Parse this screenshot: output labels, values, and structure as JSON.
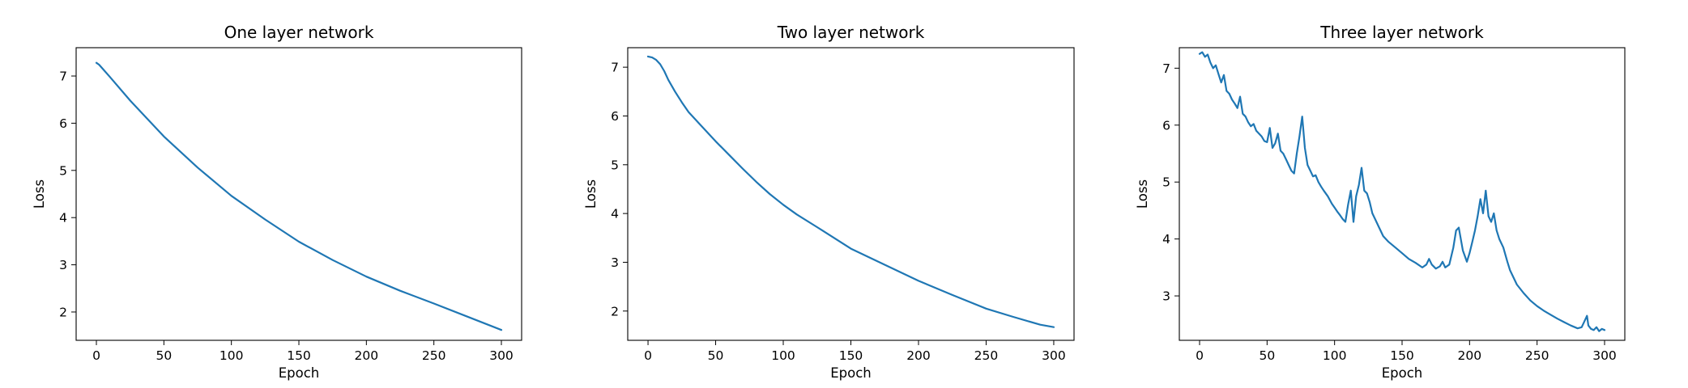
{
  "chart_data": [
    {
      "type": "line",
      "title": "One layer network",
      "xlabel": "Epoch",
      "ylabel": "Loss",
      "xlim": [
        -15,
        315
      ],
      "ylim": [
        1.4,
        7.6
      ],
      "xticks": [
        0,
        50,
        100,
        150,
        200,
        250,
        300
      ],
      "yticks": [
        2,
        3,
        4,
        5,
        6,
        7
      ],
      "grid": false,
      "color": "#1f77b4",
      "series": [
        {
          "x": [
            0,
            2,
            10,
            25,
            50,
            75,
            100,
            125,
            150,
            175,
            200,
            225,
            250,
            275,
            300
          ],
          "y": [
            7.28,
            7.24,
            6.98,
            6.48,
            5.72,
            5.06,
            4.46,
            3.96,
            3.49,
            3.1,
            2.75,
            2.45,
            2.18,
            1.9,
            1.62
          ]
        }
      ]
    },
    {
      "type": "line",
      "title": "Two layer network",
      "xlabel": "Epoch",
      "ylabel": "Loss",
      "xlim": [
        -15,
        315
      ],
      "ylim": [
        1.4,
        7.4
      ],
      "xticks": [
        0,
        50,
        100,
        150,
        200,
        250,
        300
      ],
      "yticks": [
        2,
        3,
        4,
        5,
        6,
        7
      ],
      "grid": false,
      "color": "#1f77b4",
      "series": [
        {
          "x": [
            0,
            3,
            6,
            9,
            12,
            15,
            20,
            25,
            30,
            40,
            50,
            60,
            70,
            80,
            90,
            100,
            110,
            125,
            150,
            175,
            200,
            225,
            250,
            270,
            290,
            300
          ],
          "y": [
            7.22,
            7.2,
            7.15,
            7.06,
            6.92,
            6.74,
            6.5,
            6.28,
            6.08,
            5.78,
            5.48,
            5.2,
            4.92,
            4.65,
            4.4,
            4.18,
            3.98,
            3.72,
            3.28,
            2.95,
            2.62,
            2.33,
            2.05,
            1.88,
            1.72,
            1.67
          ]
        }
      ]
    },
    {
      "type": "line",
      "title": "Three layer network",
      "xlabel": "Epoch",
      "ylabel": "Loss",
      "xlim": [
        -15,
        315
      ],
      "ylim": [
        2.22,
        7.36
      ],
      "xticks": [
        0,
        50,
        100,
        150,
        200,
        250,
        300
      ],
      "yticks": [
        3,
        4,
        5,
        6,
        7
      ],
      "grid": false,
      "color": "#1f77b4",
      "series": [
        {
          "x": [
            0,
            2,
            4,
            6,
            8,
            10,
            12,
            14,
            16,
            18,
            20,
            22,
            24,
            26,
            28,
            30,
            32,
            34,
            36,
            38,
            40,
            42,
            44,
            46,
            48,
            50,
            52,
            54,
            56,
            58,
            60,
            62,
            64,
            66,
            68,
            70,
            72,
            74,
            76,
            78,
            80,
            82,
            84,
            86,
            88,
            90,
            92,
            95,
            98,
            100,
            102,
            104,
            106,
            108,
            110,
            112,
            114,
            116,
            118,
            120,
            122,
            124,
            126,
            128,
            130,
            133,
            136,
            140,
            145,
            150,
            155,
            160,
            165,
            168,
            170,
            172,
            175,
            178,
            180,
            182,
            185,
            188,
            190,
            192,
            195,
            198,
            200,
            202,
            204,
            206,
            208,
            210,
            212,
            214,
            216,
            218,
            220,
            222,
            225,
            228,
            230,
            235,
            240,
            245,
            250,
            255,
            260,
            265,
            270,
            275,
            280,
            283,
            285,
            287,
            288,
            290,
            292,
            294,
            296,
            298,
            300
          ],
          "y": [
            7.25,
            7.28,
            7.2,
            7.24,
            7.1,
            7.0,
            7.05,
            6.9,
            6.75,
            6.88,
            6.6,
            6.55,
            6.45,
            6.38,
            6.3,
            6.5,
            6.2,
            6.15,
            6.05,
            5.98,
            6.02,
            5.9,
            5.85,
            5.8,
            5.72,
            5.7,
            5.95,
            5.6,
            5.68,
            5.85,
            5.55,
            5.5,
            5.4,
            5.3,
            5.2,
            5.15,
            5.5,
            5.8,
            6.15,
            5.6,
            5.3,
            5.2,
            5.1,
            5.12,
            5.0,
            4.92,
            4.85,
            4.75,
            4.62,
            4.55,
            4.48,
            4.42,
            4.35,
            4.3,
            4.6,
            4.85,
            4.3,
            4.75,
            4.95,
            5.25,
            4.85,
            4.8,
            4.65,
            4.45,
            4.35,
            4.2,
            4.05,
            3.95,
            3.85,
            3.75,
            3.65,
            3.58,
            3.5,
            3.55,
            3.65,
            3.55,
            3.48,
            3.52,
            3.6,
            3.5,
            3.55,
            3.85,
            4.15,
            4.2,
            3.8,
            3.6,
            3.75,
            3.95,
            4.15,
            4.4,
            4.7,
            4.45,
            4.85,
            4.4,
            4.3,
            4.45,
            4.15,
            4.0,
            3.85,
            3.6,
            3.45,
            3.2,
            3.05,
            2.92,
            2.82,
            2.74,
            2.67,
            2.6,
            2.54,
            2.48,
            2.43,
            2.45,
            2.55,
            2.65,
            2.48,
            2.42,
            2.4,
            2.45,
            2.38,
            2.42,
            2.4
          ]
        }
      ]
    }
  ]
}
